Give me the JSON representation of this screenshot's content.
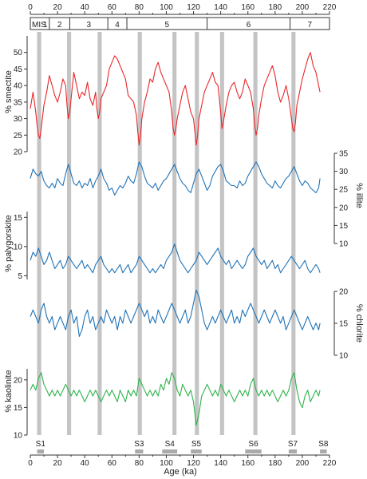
{
  "chart_data": {
    "type": "line",
    "x_label": "Age (ka)",
    "x_range": [
      0,
      220
    ],
    "x_ticks": [
      0,
      20,
      40,
      60,
      80,
      100,
      120,
      140,
      160,
      180,
      200,
      220
    ],
    "mis_label": "MIS",
    "mis_stages": [
      {
        "label": "1",
        "from": 0,
        "to": 14
      },
      {
        "label": "2",
        "from": 14,
        "to": 29
      },
      {
        "label": "3",
        "from": 29,
        "to": 57
      },
      {
        "label": "4",
        "from": 57,
        "to": 71
      },
      {
        "label": "5",
        "from": 71,
        "to": 130
      },
      {
        "label": "6",
        "from": 130,
        "to": 191
      },
      {
        "label": "7",
        "from": 191,
        "to": 220
      }
    ],
    "gray_bands": [
      {
        "from": 5,
        "to": 8
      },
      {
        "from": 27,
        "to": 30
      },
      {
        "from": 49.5,
        "to": 52.5
      },
      {
        "from": 79,
        "to": 82
      },
      {
        "from": 104.5,
        "to": 107.5
      },
      {
        "from": 121,
        "to": 124
      },
      {
        "from": 139.5,
        "to": 142.5
      },
      {
        "from": 164,
        "to": 167
      },
      {
        "from": 192,
        "to": 195
      }
    ],
    "sapropels": [
      {
        "label": "S1",
        "from": 5,
        "to": 10
      },
      {
        "label": "S3",
        "from": 77,
        "to": 83
      },
      {
        "label": "S4",
        "from": 97,
        "to": 108
      },
      {
        "label": "S5",
        "from": 118,
        "to": 126
      },
      {
        "label": "S6",
        "from": 158,
        "to": 170
      },
      {
        "label": "S7",
        "from": 190,
        "to": 196
      },
      {
        "label": "S8",
        "from": 213,
        "to": 218
      }
    ],
    "series": [
      {
        "name": "% smectite",
        "color": "#e8272a",
        "axis_side": "left",
        "ylim": [
          20,
          55
        ],
        "ticks": [
          20,
          25,
          30,
          35,
          40,
          45,
          50
        ],
        "x": [
          0,
          2,
          4,
          5,
          6,
          7,
          8,
          10,
          12,
          14,
          16,
          18,
          20,
          22,
          24,
          26,
          27,
          28,
          29,
          30,
          32,
          34,
          36,
          38,
          40,
          42,
          44,
          46,
          48,
          49,
          50,
          51,
          52,
          54,
          56,
          58,
          60,
          62,
          64,
          66,
          68,
          70,
          72,
          74,
          76,
          78,
          79,
          80,
          81,
          82,
          84,
          86,
          88,
          90,
          92,
          94,
          96,
          98,
          100,
          102,
          104,
          105,
          106,
          107,
          108,
          110,
          112,
          114,
          116,
          118,
          120,
          121,
          122,
          123,
          124,
          126,
          128,
          130,
          132,
          134,
          136,
          138,
          139,
          140,
          141,
          142,
          144,
          146,
          148,
          150,
          152,
          154,
          156,
          158,
          160,
          162,
          164,
          165,
          166,
          167,
          168,
          170,
          172,
          174,
          176,
          178,
          180,
          182,
          184,
          186,
          188,
          190,
          192,
          193,
          194,
          195,
          196,
          198,
          200,
          202,
          204,
          206,
          208,
          210,
          212,
          213
        ],
        "values": [
          33,
          38,
          32,
          28,
          25,
          24,
          27,
          34,
          38,
          43,
          40,
          37,
          35,
          38,
          42,
          40,
          34,
          30,
          32,
          36,
          44,
          40,
          36,
          38,
          37,
          41,
          36,
          34,
          38,
          33,
          30,
          32,
          36,
          38,
          40,
          45,
          47,
          49,
          48,
          46,
          44,
          42,
          37,
          36,
          35,
          31,
          26,
          22,
          25,
          30,
          35,
          38,
          42,
          41,
          45,
          47,
          44,
          42,
          40,
          38,
          32,
          27,
          25,
          27,
          30,
          34,
          38,
          40,
          36,
          32,
          30,
          26,
          22,
          25,
          30,
          34,
          38,
          40,
          42,
          44,
          41,
          40,
          36,
          32,
          27,
          29,
          34,
          38,
          40,
          41,
          38,
          36,
          38,
          42,
          40,
          38,
          33,
          28,
          25,
          27,
          31,
          36,
          40,
          42,
          44,
          46,
          43,
          38,
          35,
          37,
          40,
          36,
          30,
          27,
          26,
          29,
          34,
          38,
          42,
          45,
          48,
          50,
          46,
          44,
          40,
          38
        ]
      },
      {
        "name": "% illite",
        "color": "#1f73b8",
        "axis_side": "right",
        "ylim": [
          10,
          35
        ],
        "ticks": [
          10,
          15,
          20,
          25,
          30,
          35
        ],
        "x": [
          0,
          2,
          4,
          6,
          8,
          10,
          12,
          14,
          16,
          18,
          20,
          22,
          24,
          26,
          28,
          30,
          32,
          34,
          36,
          38,
          40,
          42,
          44,
          46,
          48,
          50,
          52,
          54,
          56,
          58,
          60,
          62,
          64,
          66,
          68,
          70,
          72,
          74,
          76,
          78,
          80,
          82,
          84,
          86,
          88,
          90,
          92,
          94,
          96,
          98,
          100,
          102,
          104,
          106,
          108,
          110,
          112,
          114,
          116,
          118,
          120,
          122,
          124,
          126,
          128,
          130,
          132,
          134,
          136,
          138,
          140,
          142,
          144,
          146,
          148,
          150,
          152,
          154,
          156,
          158,
          160,
          162,
          164,
          166,
          168,
          170,
          172,
          174,
          176,
          178,
          180,
          182,
          184,
          186,
          188,
          190,
          192,
          194,
          196,
          198,
          200,
          202,
          204,
          206,
          208,
          210,
          212,
          213
        ],
        "values": [
          25,
          29,
          27,
          26,
          28,
          24,
          22,
          21,
          23,
          21,
          25,
          23,
          22,
          27,
          31,
          27,
          23,
          22,
          24,
          21,
          23,
          22,
          25,
          21,
          24,
          26,
          29,
          25,
          23,
          20,
          21,
          18,
          20,
          22,
          21,
          23,
          26,
          24,
          23,
          27,
          32,
          30,
          26,
          23,
          22,
          21,
          23,
          20,
          22,
          24,
          25,
          27,
          29,
          31,
          28,
          25,
          23,
          22,
          20,
          19,
          23,
          27,
          29,
          26,
          23,
          20,
          22,
          26,
          28,
          30,
          31,
          28,
          24,
          23,
          22,
          22,
          21,
          24,
          22,
          23,
          26,
          28,
          30,
          32,
          30,
          27,
          25,
          23,
          22,
          21,
          24,
          22,
          21,
          23,
          25,
          26,
          28,
          30,
          27,
          24,
          22,
          24,
          23,
          21,
          20,
          19,
          21,
          25
        ]
      },
      {
        "name": "% palygorskite",
        "color": "#1f73b8",
        "axis_side": "left",
        "ylim": [
          3,
          16
        ],
        "ticks": [
          5,
          10,
          15
        ],
        "x": [
          0,
          2,
          4,
          6,
          8,
          10,
          12,
          14,
          16,
          18,
          20,
          22,
          24,
          26,
          28,
          30,
          32,
          34,
          36,
          38,
          40,
          42,
          44,
          46,
          48,
          50,
          52,
          54,
          56,
          58,
          60,
          62,
          64,
          66,
          68,
          70,
          72,
          74,
          76,
          78,
          80,
          82,
          84,
          86,
          88,
          90,
          92,
          94,
          96,
          98,
          100,
          102,
          104,
          106,
          108,
          110,
          112,
          114,
          116,
          118,
          120,
          122,
          124,
          126,
          128,
          130,
          132,
          134,
          136,
          138,
          140,
          142,
          144,
          146,
          148,
          150,
          152,
          154,
          156,
          158,
          160,
          162,
          164,
          166,
          168,
          170,
          172,
          174,
          176,
          178,
          180,
          182,
          184,
          186,
          188,
          190,
          192,
          194,
          196,
          198,
          200,
          202,
          204,
          206,
          208,
          210,
          212,
          213
        ],
        "values": [
          8,
          10,
          9,
          11,
          9,
          7,
          8,
          10,
          8,
          6,
          7,
          8,
          6,
          7,
          9,
          8,
          7,
          6,
          7,
          8,
          6,
          7,
          6,
          5,
          7,
          8,
          9,
          7,
          6,
          5,
          6,
          5,
          6,
          7,
          5,
          6,
          7,
          5,
          6,
          7,
          9,
          8,
          7,
          6,
          5,
          6,
          5,
          6,
          7,
          6,
          8,
          9,
          10,
          12,
          10,
          8,
          7,
          6,
          5,
          6,
          7,
          8,
          10,
          9,
          8,
          7,
          8,
          9,
          10,
          11,
          9,
          8,
          7,
          8,
          6,
          7,
          8,
          7,
          6,
          7,
          9,
          10,
          11,
          9,
          8,
          7,
          8,
          6,
          7,
          8,
          6,
          7,
          5,
          6,
          7,
          8,
          9,
          8,
          7,
          6,
          7,
          8,
          6,
          5,
          6,
          7,
          6,
          5
        ]
      },
      {
        "name": "% chlorite",
        "color": "#1f73b8",
        "axis_side": "right",
        "ylim": [
          10,
          20
        ],
        "ticks": [
          10,
          15,
          20
        ],
        "x": [
          0,
          2,
          4,
          6,
          8,
          10,
          12,
          14,
          16,
          18,
          20,
          22,
          24,
          26,
          28,
          30,
          32,
          34,
          36,
          38,
          40,
          42,
          44,
          46,
          48,
          50,
          52,
          54,
          56,
          58,
          60,
          62,
          64,
          66,
          68,
          70,
          72,
          74,
          76,
          78,
          80,
          82,
          84,
          86,
          88,
          90,
          92,
          94,
          96,
          98,
          100,
          102,
          104,
          106,
          108,
          110,
          112,
          114,
          116,
          118,
          120,
          122,
          124,
          126,
          128,
          130,
          132,
          134,
          136,
          138,
          140,
          142,
          144,
          146,
          148,
          150,
          152,
          154,
          156,
          158,
          160,
          162,
          164,
          166,
          168,
          170,
          172,
          174,
          176,
          178,
          180,
          182,
          184,
          186,
          188,
          190,
          192,
          194,
          196,
          198,
          200,
          202,
          204,
          206,
          208,
          210,
          212,
          213
        ],
        "values": [
          15,
          16,
          15,
          14,
          16,
          17,
          15,
          14,
          15,
          13,
          14,
          15,
          14,
          13,
          15,
          16,
          14,
          15,
          12,
          13,
          15,
          16,
          14,
          15,
          13,
          14,
          15,
          14,
          16,
          15,
          14,
          15,
          13,
          15,
          14,
          16,
          15,
          14,
          15,
          16,
          17,
          16,
          15,
          16,
          14,
          15,
          14,
          16,
          15,
          14,
          15,
          16,
          17,
          16,
          15,
          14,
          15,
          16,
          14,
          15,
          17,
          19,
          18,
          16,
          14,
          13,
          14,
          15,
          14,
          15,
          16,
          15,
          14,
          15,
          16,
          14,
          15,
          14,
          16,
          15,
          16,
          17,
          16,
          15,
          14,
          15,
          16,
          15,
          14,
          15,
          16,
          15,
          14,
          15,
          13,
          14,
          15,
          16,
          15,
          14,
          13,
          14,
          15,
          14,
          13,
          14,
          13,
          14
        ]
      },
      {
        "name": "% kaolinite",
        "color": "#2db34a",
        "axis_side": "left",
        "ylim": [
          10,
          22
        ],
        "ticks": [
          10,
          15,
          20
        ],
        "x": [
          0,
          2,
          4,
          6,
          8,
          10,
          12,
          14,
          16,
          18,
          20,
          22,
          24,
          26,
          28,
          30,
          32,
          34,
          36,
          38,
          40,
          42,
          44,
          46,
          48,
          50,
          52,
          54,
          56,
          58,
          60,
          62,
          64,
          66,
          68,
          70,
          72,
          74,
          76,
          78,
          80,
          82,
          84,
          86,
          88,
          90,
          92,
          94,
          96,
          98,
          100,
          102,
          104,
          106,
          108,
          110,
          112,
          114,
          116,
          118,
          120,
          122,
          124,
          126,
          128,
          130,
          132,
          134,
          136,
          138,
          140,
          142,
          144,
          146,
          148,
          150,
          152,
          154,
          156,
          158,
          160,
          162,
          164,
          166,
          168,
          170,
          172,
          174,
          176,
          178,
          180,
          182,
          184,
          186,
          188,
          190,
          192,
          194,
          196,
          198,
          200,
          202,
          204,
          206,
          208,
          210,
          212,
          213
        ],
        "values": [
          17,
          18,
          17,
          19,
          20,
          18,
          17,
          16,
          17,
          16,
          17,
          16,
          17,
          18,
          17,
          16,
          17,
          16,
          17,
          16,
          15,
          16,
          17,
          16,
          17,
          16,
          15,
          16,
          17,
          16,
          17,
          16,
          15,
          17,
          16,
          15,
          17,
          16,
          17,
          16,
          19,
          18,
          17,
          16,
          17,
          16,
          17,
          16,
          18,
          17,
          19,
          18,
          20,
          19,
          17,
          16,
          18,
          17,
          16,
          17,
          15,
          11,
          13,
          16,
          17,
          18,
          17,
          16,
          17,
          16,
          18,
          17,
          16,
          17,
          16,
          15,
          16,
          17,
          16,
          17,
          16,
          18,
          19,
          17,
          16,
          17,
          16,
          17,
          16,
          17,
          16,
          15,
          16,
          17,
          16,
          17,
          19,
          20,
          17,
          15,
          14,
          16,
          17,
          15,
          16,
          17,
          16,
          17
        ]
      }
    ]
  }
}
